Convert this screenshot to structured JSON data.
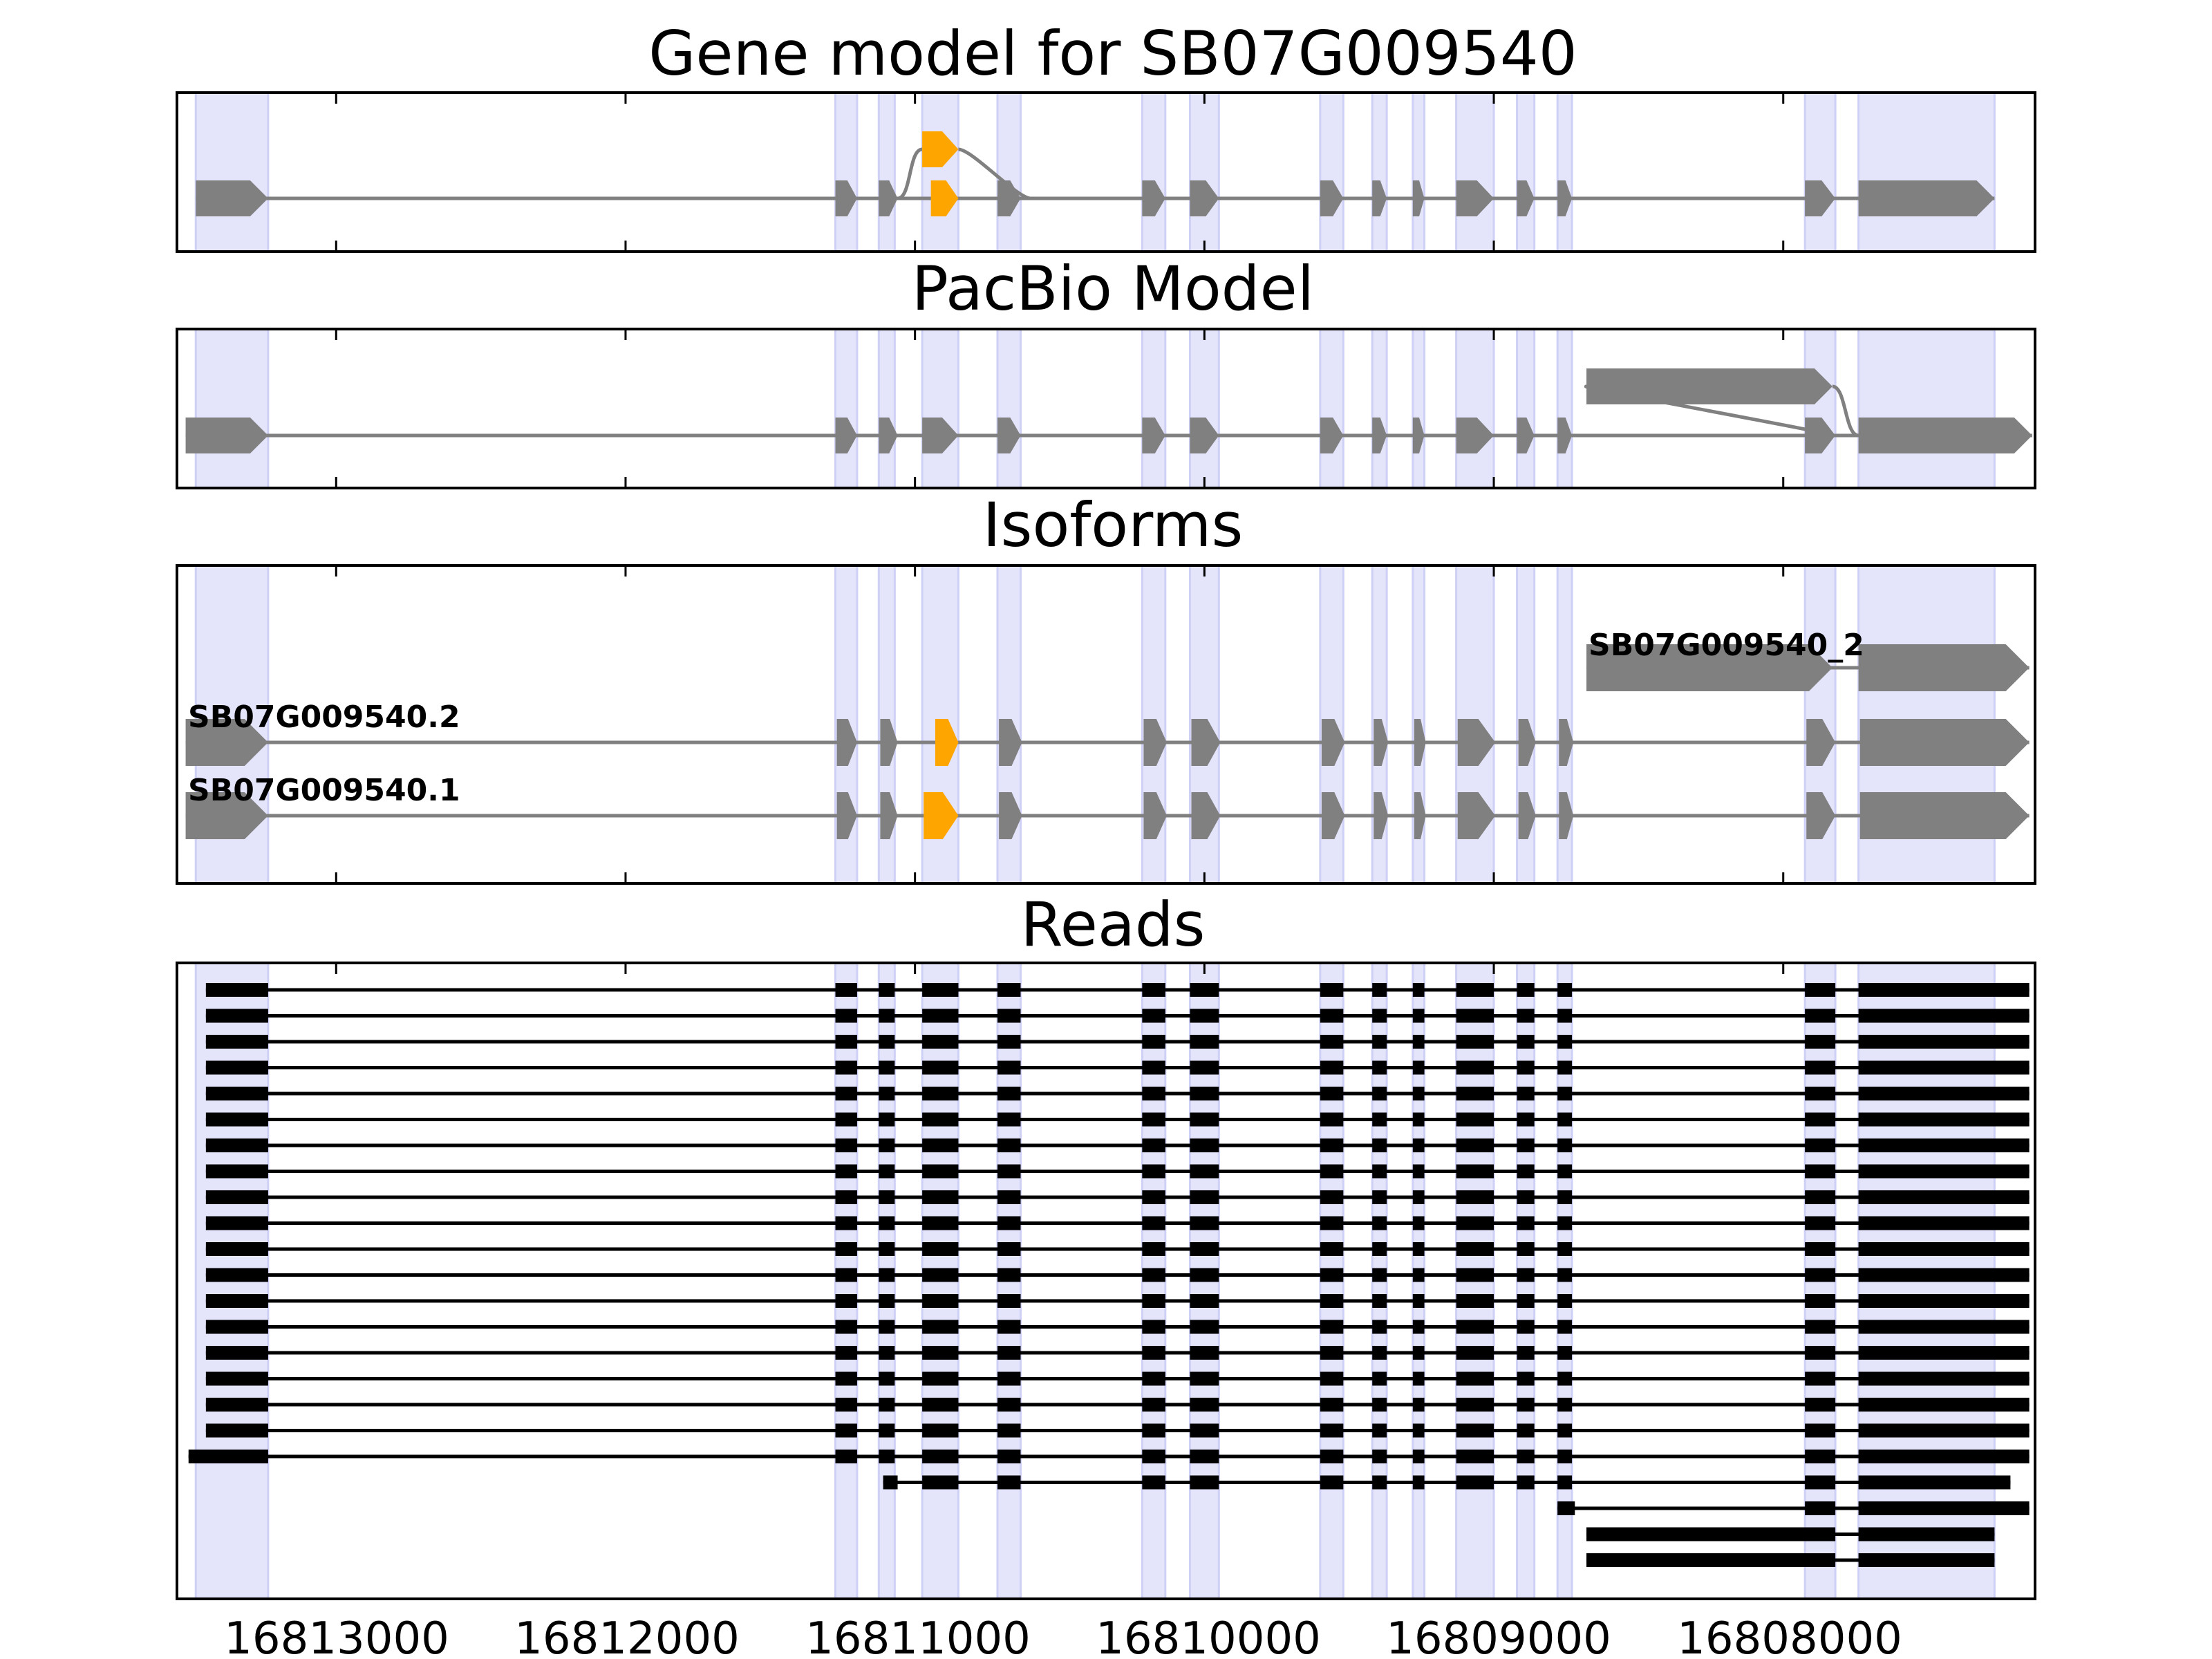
{
  "chart_data": {
    "type": "gene-structure",
    "x_axis": {
      "reversed": true,
      "range": [
        16813550,
        16807130
      ],
      "ticks": [
        16813000,
        16812000,
        16811000,
        16810000,
        16809000,
        16808000
      ],
      "tick_labels": [
        "16813000",
        "16812000",
        "16811000",
        "16810000",
        "16809000",
        "16808000"
      ]
    },
    "highlight_color": "#e4e4fb",
    "exon_color": "#808080",
    "alt_exon_color": "#ffa500",
    "read_color": "#000000",
    "exon_columns": [
      [
        16813485,
        16813235
      ],
      [
        16811275,
        16811200
      ],
      [
        16811125,
        16811070
      ],
      [
        16810975,
        16810850
      ],
      [
        16810715,
        16810635
      ],
      [
        16810215,
        16810135
      ],
      [
        16810050,
        16809950
      ],
      [
        16809600,
        16809520
      ],
      [
        16809420,
        16809370
      ],
      [
        16809280,
        16809240
      ],
      [
        16809130,
        16809000
      ],
      [
        16808920,
        16808860
      ],
      [
        16808780,
        16808730
      ],
      [
        16807925,
        16807820
      ],
      [
        16807740,
        16807270
      ]
    ],
    "panels": [
      {
        "title": "Gene model for SB07G009540",
        "kind": "gene",
        "models": [
          {
            "name": "",
            "row": 0,
            "exons": [
              [
                16813485,
                16813235,
                "normal"
              ],
              [
                16811275,
                16811200,
                "normal"
              ],
              [
                16811125,
                16811060,
                "normal"
              ],
              [
                16810945,
                16810850,
                "alt"
              ],
              [
                16810715,
                16810635,
                "normal"
              ],
              [
                16810215,
                16810135,
                "normal"
              ],
              [
                16810050,
                16809950,
                "normal"
              ],
              [
                16809600,
                16809520,
                "normal"
              ],
              [
                16809420,
                16809370,
                "normal"
              ],
              [
                16809280,
                16809240,
                "normal"
              ],
              [
                16809130,
                16809000,
                "normal"
              ],
              [
                16808920,
                16808860,
                "normal"
              ],
              [
                16808780,
                16808730,
                "normal"
              ],
              [
                16807925,
                16807820,
                "normal"
              ],
              [
                16807740,
                16807270,
                "normal"
              ]
            ]
          },
          {
            "name": "",
            "row": 1,
            "exons": [
              [
                16810975,
                16810850,
                "alt"
              ]
            ],
            "link_from": 16811060,
            "link_to": 16810600
          }
        ]
      },
      {
        "title": "PacBio Model",
        "kind": "gene",
        "models": [
          {
            "name": "",
            "row": 0,
            "exons": [
              [
                16813520,
                16813235,
                "normal"
              ],
              [
                16811275,
                16811200,
                "normal"
              ],
              [
                16811125,
                16811060,
                "normal"
              ],
              [
                16810975,
                16810850,
                "normal"
              ],
              [
                16810715,
                16810635,
                "normal"
              ],
              [
                16810215,
                16810135,
                "normal"
              ],
              [
                16810050,
                16809950,
                "normal"
              ],
              [
                16809600,
                16809520,
                "normal"
              ],
              [
                16809420,
                16809370,
                "normal"
              ],
              [
                16809280,
                16809240,
                "normal"
              ],
              [
                16809130,
                16809000,
                "normal"
              ],
              [
                16808920,
                16808860,
                "normal"
              ],
              [
                16808780,
                16808730,
                "normal"
              ],
              [
                16807925,
                16807820,
                "normal"
              ],
              [
                16807740,
                16807140,
                "normal"
              ]
            ]
          },
          {
            "name": "",
            "row": 1,
            "exons": [
              [
                16808680,
                16807830,
                "normal"
              ]
            ],
            "link_from": 16807830,
            "link_to": 16807740
          }
        ]
      },
      {
        "title": "Isoforms",
        "kind": "isoforms",
        "models": [
          {
            "name": "SB07G009540_2",
            "row": 2,
            "exons": [
              [
                16808680,
                16807830,
                "normal"
              ],
              [
                16807740,
                16807150,
                "normal"
              ]
            ]
          },
          {
            "name": "SB07G009540.2",
            "row": 1,
            "exons": [
              [
                16813520,
                16813235,
                "normal"
              ],
              [
                16811270,
                16811200,
                "normal"
              ],
              [
                16811120,
                16811060,
                "normal"
              ],
              [
                16810930,
                16810850,
                "alt"
              ],
              [
                16810710,
                16810630,
                "normal"
              ],
              [
                16810210,
                16810130,
                "normal"
              ],
              [
                16810045,
                16809945,
                "normal"
              ],
              [
                16809595,
                16809515,
                "normal"
              ],
              [
                16809415,
                16809365,
                "normal"
              ],
              [
                16809275,
                16809235,
                "normal"
              ],
              [
                16809125,
                16808995,
                "normal"
              ],
              [
                16808915,
                16808855,
                "normal"
              ],
              [
                16808775,
                16808725,
                "normal"
              ],
              [
                16807920,
                16807820,
                "normal"
              ],
              [
                16807735,
                16807150,
                "normal"
              ]
            ]
          },
          {
            "name": "SB07G009540.1",
            "row": 0,
            "exons": [
              [
                16813520,
                16813235,
                "normal"
              ],
              [
                16811270,
                16811200,
                "normal"
              ],
              [
                16811120,
                16811060,
                "normal"
              ],
              [
                16810970,
                16810850,
                "alt"
              ],
              [
                16810710,
                16810630,
                "normal"
              ],
              [
                16810210,
                16810130,
                "normal"
              ],
              [
                16810045,
                16809945,
                "normal"
              ],
              [
                16809595,
                16809515,
                "normal"
              ],
              [
                16809415,
                16809365,
                "normal"
              ],
              [
                16809275,
                16809235,
                "normal"
              ],
              [
                16809125,
                16808995,
                "normal"
              ],
              [
                16808915,
                16808855,
                "normal"
              ],
              [
                16808775,
                16808725,
                "normal"
              ],
              [
                16807920,
                16807820,
                "normal"
              ],
              [
                16807735,
                16807150,
                "normal"
              ]
            ]
          }
        ]
      },
      {
        "title": "Reads",
        "kind": "reads",
        "read_groups": [
          {
            "count": 18,
            "type": "full"
          },
          {
            "count": 1,
            "type": "full_short_start"
          },
          {
            "count": 1,
            "type": "partial_from_exon3"
          },
          {
            "count": 1,
            "type": "partial_from_exon13"
          },
          {
            "count": 2,
            "type": "isoform_2"
          }
        ]
      }
    ]
  }
}
